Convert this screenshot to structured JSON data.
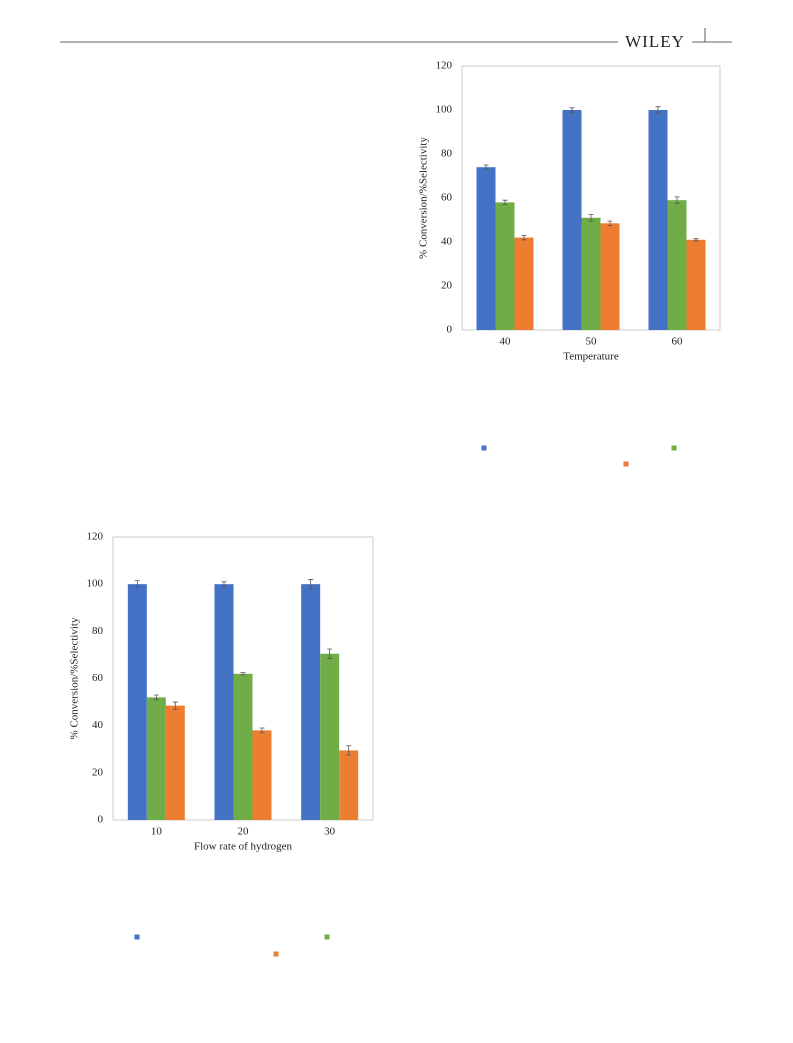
{
  "header": {
    "publisher": "WILEY"
  },
  "chart_data": [
    {
      "type": "bar",
      "categories": [
        "40",
        "50",
        "60"
      ],
      "series": [
        {
          "color": "#4472c4",
          "values": [
            74,
            100,
            100
          ],
          "errors": [
            1,
            1,
            1.5
          ]
        },
        {
          "color": "#70ad47",
          "values": [
            58,
            51,
            59
          ],
          "errors": [
            1,
            1.5,
            1.5
          ]
        },
        {
          "color": "#ed7d31",
          "values": [
            42,
            48.5,
            41
          ],
          "errors": [
            1,
            1,
            0.5
          ]
        }
      ],
      "ylim": [
        0,
        120
      ],
      "yticks": [
        0,
        20,
        40,
        60,
        80,
        100,
        120
      ],
      "x_label": "Temperature",
      "y_label": "% Conversion/%Selectivity",
      "grid": false
    },
    {
      "type": "bar",
      "categories": [
        "10",
        "20",
        "30"
      ],
      "series": [
        {
          "color": "#4472c4",
          "values": [
            100,
            100,
            100
          ],
          "errors": [
            1.5,
            1,
            2
          ]
        },
        {
          "color": "#70ad47",
          "values": [
            52,
            62,
            70.5
          ],
          "errors": [
            1,
            0.5,
            2
          ]
        },
        {
          "color": "#ed7d31",
          "values": [
            48.5,
            38,
            29.5
          ],
          "errors": [
            1.5,
            1,
            2
          ]
        }
      ],
      "ylim": [
        0,
        120
      ],
      "yticks": [
        0,
        20,
        40,
        60,
        80,
        100,
        120
      ],
      "x_label": "Flow rate of hydrogen",
      "y_label": "% Conversion/%Selectivity",
      "grid": false
    }
  ]
}
